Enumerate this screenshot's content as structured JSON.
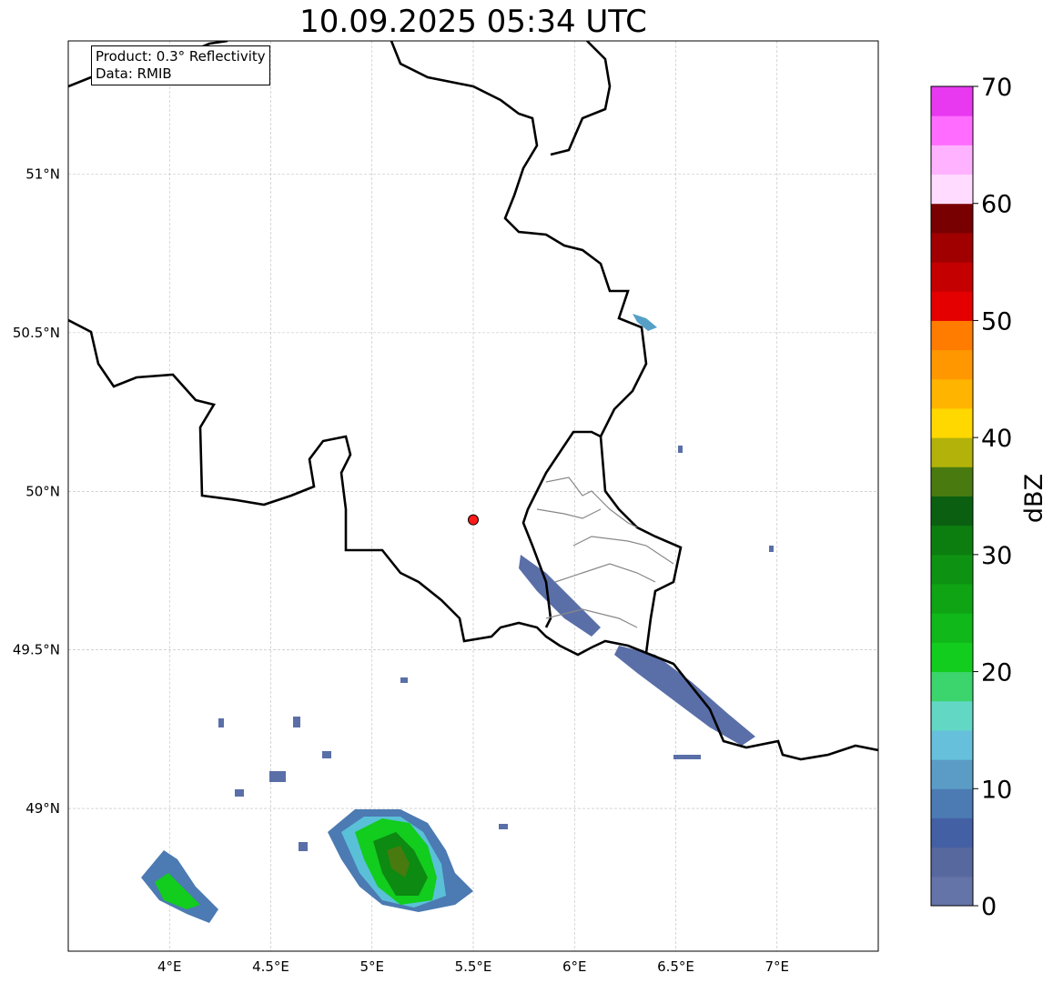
{
  "title": "10.09.2025 05:34 UTC",
  "legend": {
    "product": "Product: 0.3° Reflectivity",
    "source": "Data: RMIB"
  },
  "map": {
    "lon_range": [
      3.5,
      7.5
    ],
    "lat_range": [
      48.55,
      51.42
    ],
    "lon_ticks": [
      {
        "v": 4,
        "label": "4°E"
      },
      {
        "v": 4.5,
        "label": "4.5°E"
      },
      {
        "v": 5,
        "label": "5°E"
      },
      {
        "v": 5.5,
        "label": "5.5°E"
      },
      {
        "v": 6,
        "label": "6°E"
      },
      {
        "v": 6.5,
        "label": "6.5°E"
      },
      {
        "v": 7,
        "label": "7°E"
      }
    ],
    "lat_ticks": [
      {
        "v": 51,
        "label": "51°N"
      },
      {
        "v": 50.5,
        "label": "50.5°N"
      },
      {
        "v": 50,
        "label": "50°N"
      },
      {
        "v": 49.5,
        "label": "49.5°N"
      },
      {
        "v": 49,
        "label": "49°N"
      }
    ],
    "radar_site": {
      "lon": 5.5,
      "lat": 49.91,
      "color": "#ff1a1a"
    }
  },
  "colorbar": {
    "label": "dBZ",
    "min": 0,
    "max": 70,
    "step": 2.5,
    "ticks": [
      "0",
      "10",
      "20",
      "30",
      "40",
      "50",
      "60",
      "70"
    ],
    "colors": [
      "#6474a8",
      "#56689e",
      "#4460a4",
      "#4c7ab2",
      "#5a9cc6",
      "#66c0dc",
      "#62d8c4",
      "#3cd46c",
      "#12cc1e",
      "#10b81a",
      "#0ea414",
      "#0e9212",
      "#0c7e10",
      "#0a6010",
      "#487a10",
      "#b2b20a",
      "#ffd800",
      "#ffb400",
      "#ff9800",
      "#ff7c00",
      "#e40000",
      "#c40000",
      "#a00000",
      "#780000",
      "#ffdcff",
      "#ffb2ff",
      "#ff6cff",
      "#e838f0"
    ]
  }
}
